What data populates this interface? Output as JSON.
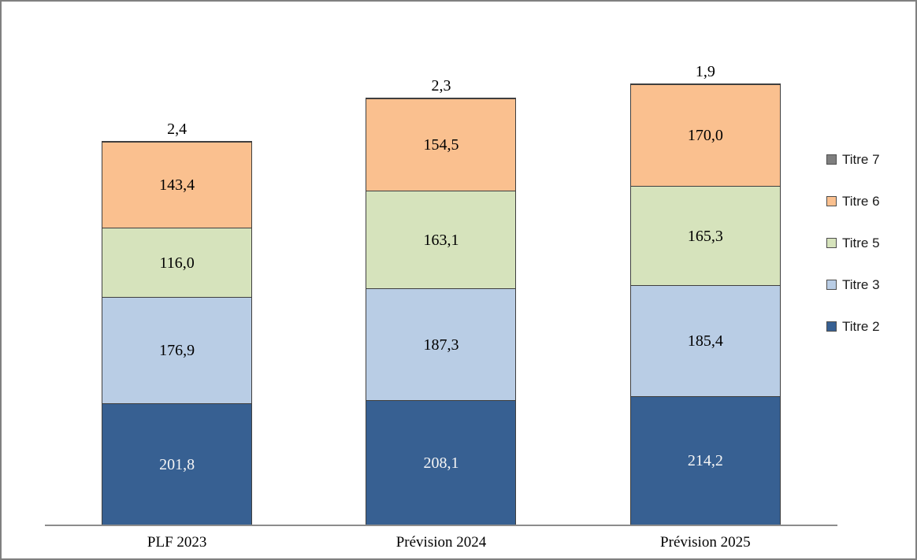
{
  "chart_data": {
    "type": "bar",
    "subtype": "stacked",
    "title": "",
    "xlabel": "",
    "ylabel": "",
    "grid": false,
    "ylim": [
      0,
      800
    ],
    "categories": [
      "PLF 2023",
      "Prévision 2024",
      "Prévision 2025"
    ],
    "series": [
      {
        "name": "Titre 2",
        "color": "#376092",
        "label_color": "#f5f5f5",
        "values": [
          201.8,
          208.1,
          214.2
        ],
        "labels": [
          "201,8",
          "208,1",
          "214,2"
        ]
      },
      {
        "name": "Titre 3",
        "color": "#b9cde5",
        "label_color": "#000000",
        "values": [
          176.9,
          187.3,
          185.4
        ],
        "labels": [
          "176,9",
          "187,3",
          "185,4"
        ]
      },
      {
        "name": "Titre 5",
        "color": "#d6e3bc",
        "label_color": "#000000",
        "values": [
          116.0,
          163.1,
          165.3
        ],
        "labels": [
          "116,0",
          "163,1",
          "165,3"
        ]
      },
      {
        "name": "Titre 6",
        "color": "#fac08f",
        "label_color": "#000000",
        "values": [
          143.4,
          154.5,
          170.0
        ],
        "labels": [
          "143,4",
          "154,5",
          "170,0"
        ]
      },
      {
        "name": "Titre 7",
        "color": "#7f7f7f",
        "label_color": "#000000",
        "values": [
          2.4,
          2.3,
          1.9
        ],
        "labels": [
          "2,4",
          "2,3",
          "1,9"
        ],
        "label_position": "above"
      }
    ],
    "legend": {
      "position": "right",
      "order": [
        "Titre 7",
        "Titre 6",
        "Titre 5",
        "Titre 3",
        "Titre 2"
      ]
    },
    "totals": [
      640.5,
      715.3,
      736.8
    ]
  }
}
